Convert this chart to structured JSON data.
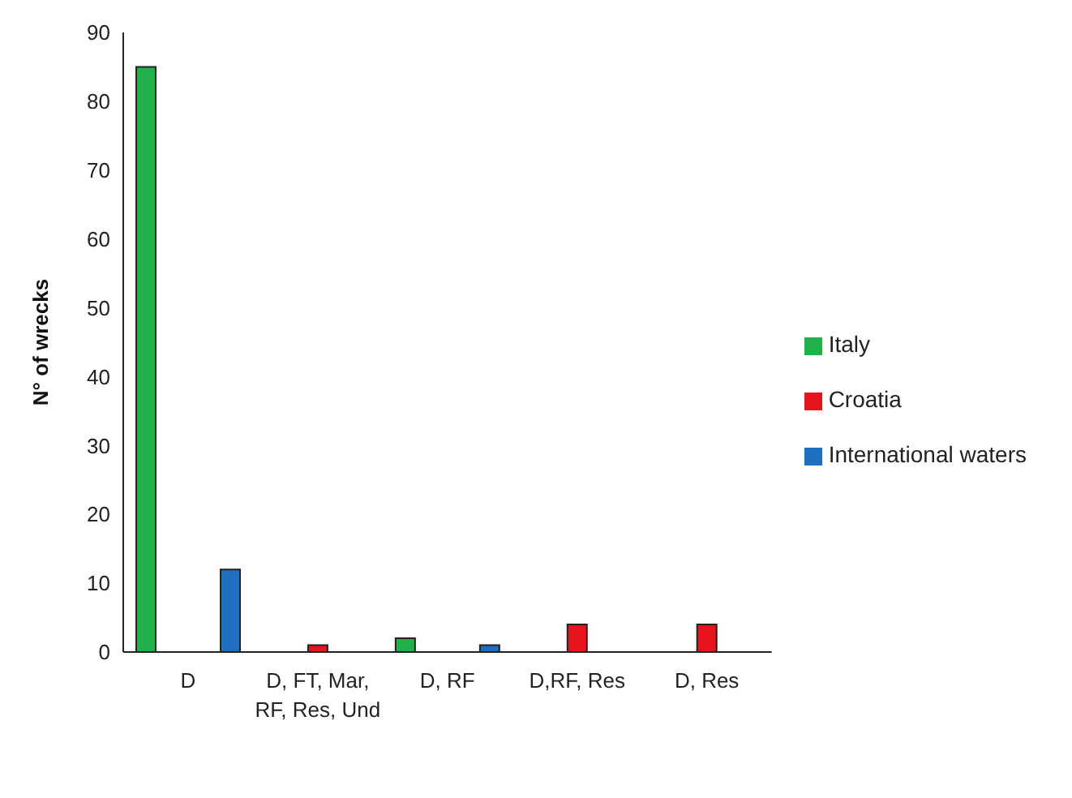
{
  "chart_data": {
    "type": "bar",
    "ylabel": "N° of wrecks",
    "categories": [
      "D",
      "D, FT, Mar, RF, Res, Und",
      "D, RF",
      "D,RF, Res",
      "D, Res"
    ],
    "series": [
      {
        "name": "Italy",
        "color": "#22b04a",
        "values": [
          85,
          0,
          2,
          0,
          0
        ]
      },
      {
        "name": "Croatia",
        "color": "#e8141b",
        "values": [
          0,
          1,
          0,
          4,
          4
        ]
      },
      {
        "name": "International waters",
        "color": "#1f6fc1",
        "values": [
          12,
          0,
          1,
          0,
          0
        ]
      }
    ],
    "ylim": [
      0,
      90
    ],
    "yticks": [
      0,
      10,
      20,
      30,
      40,
      50,
      60,
      70,
      80,
      90
    ],
    "grid": false,
    "legend": "right"
  }
}
